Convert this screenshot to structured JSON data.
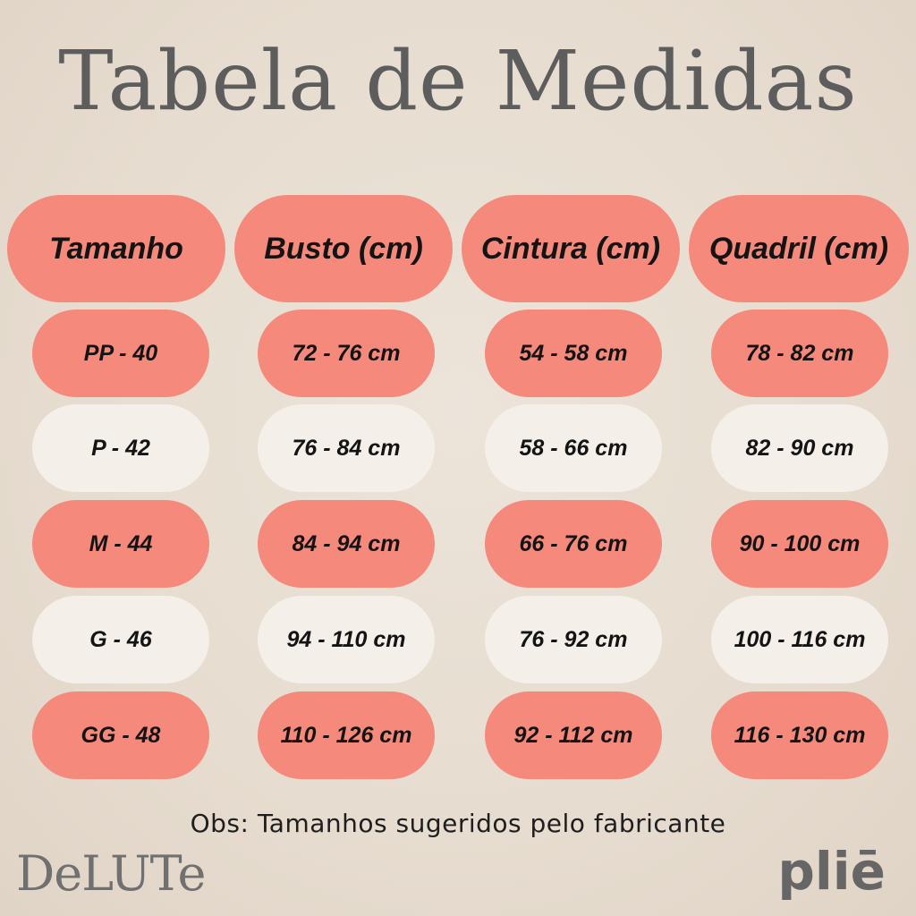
{
  "title": "Tabela de Medidas",
  "headers": [
    "Tamanho",
    "Busto (cm)",
    "Cintura (cm)",
    "Quadril (cm)"
  ],
  "rows": [
    [
      "PP - 40",
      "72 - 76 cm",
      "54 - 58 cm",
      "78 - 82 cm"
    ],
    [
      "P - 42",
      "76 - 84 cm",
      "58 - 66 cm",
      "82 - 90 cm"
    ],
    [
      "M - 44",
      "84 - 94 cm",
      "66 - 76 cm",
      "90 - 100 cm"
    ],
    [
      "G - 46",
      "94 - 110 cm",
      "76 - 92 cm",
      "100 - 116 cm"
    ],
    [
      "GG - 48",
      "110 - 126 cm",
      "92 - 112 cm",
      "116 - 130 cm"
    ]
  ],
  "note": "Obs: Tamanhos sugeridos pelo fabricante",
  "logos": {
    "left": "DeLUTe",
    "right": "pliē"
  },
  "colors": {
    "salmon": "#f4897c",
    "cream": "#f4efe9",
    "title": "#5d5d5d"
  }
}
